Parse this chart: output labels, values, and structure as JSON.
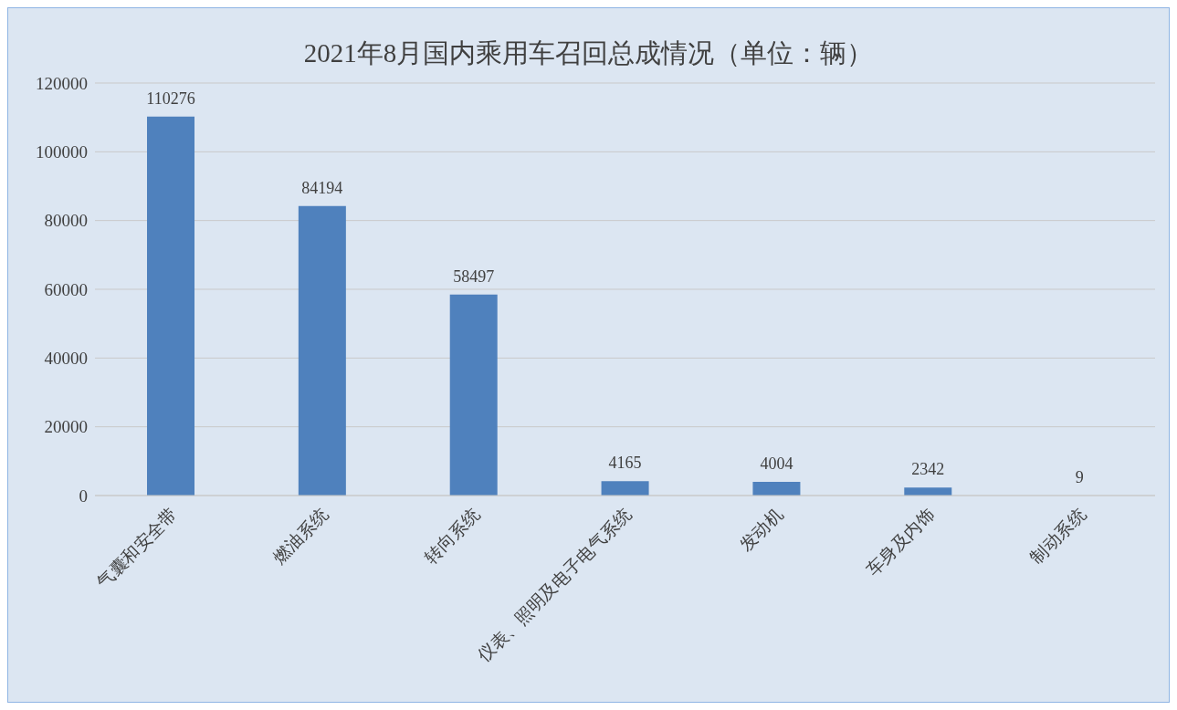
{
  "chart_data": {
    "type": "bar",
    "title": "2021年8月国内乘用车召回总成情况（单位：辆）",
    "categories": [
      "气囊和安全带",
      "燃油系统",
      "转向系统",
      "仪表、照明及电子电气系统",
      "发动机",
      "车身及内饰",
      "制动系统"
    ],
    "values": [
      110276,
      84194,
      58497,
      4165,
      4004,
      2342,
      9
    ],
    "color": "#4f81bd",
    "ylim": [
      0,
      120000
    ],
    "yticks": [
      0,
      20000,
      40000,
      60000,
      80000,
      100000,
      120000
    ],
    "grid": "y",
    "data_labels": true,
    "legend": false
  }
}
